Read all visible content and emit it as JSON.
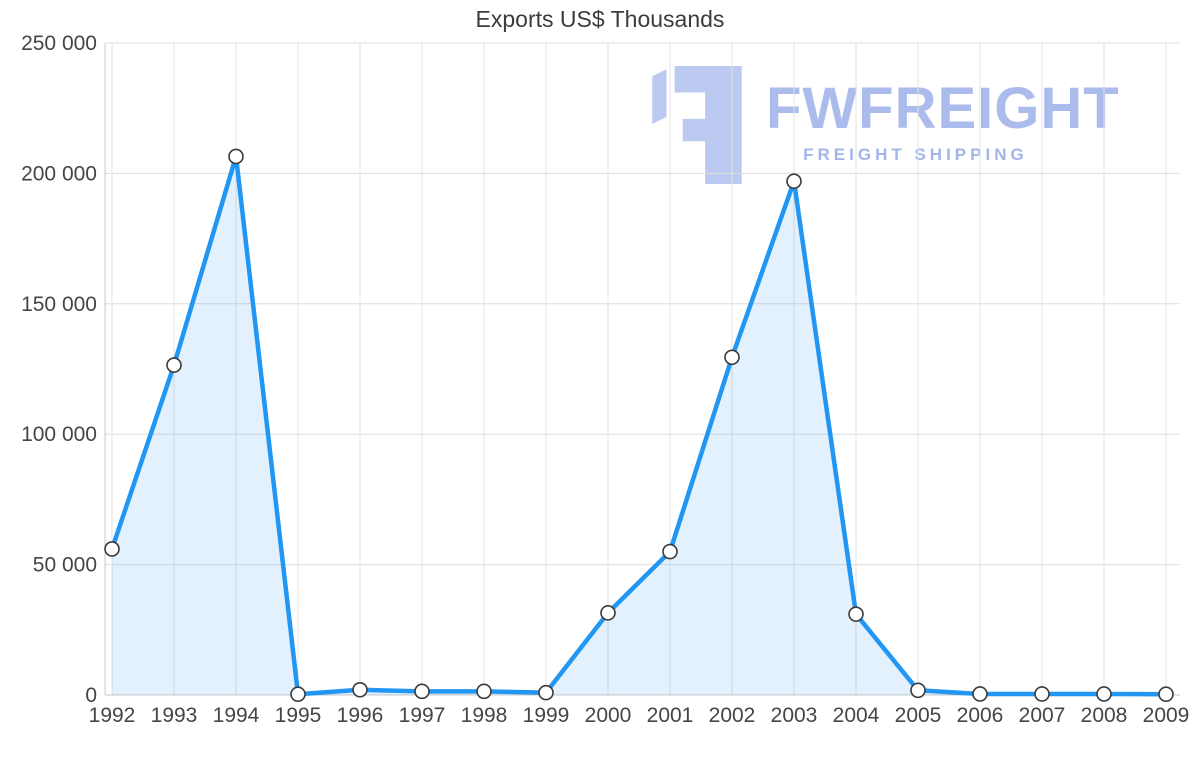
{
  "title": "Exports US$ Thousands",
  "watermark": {
    "brand": "FWFREIGHT",
    "tagline": "FREIGHT SHIPPING",
    "logo_color": "#b9c7f1",
    "brand_color": "#a6b8ec",
    "tagline_color": "#9db2e8"
  },
  "chart_data": {
    "type": "area",
    "title": "Exports US$ Thousands",
    "x": [
      1992,
      1993,
      1994,
      1995,
      1996,
      1997,
      1998,
      1999,
      2000,
      2001,
      2002,
      2003,
      2004,
      2005,
      2006,
      2007,
      2008,
      2009
    ],
    "values": [
      56000,
      126500,
      206500,
      300,
      2000,
      1400,
      1400,
      900,
      31500,
      55000,
      129500,
      197000,
      31000,
      1800,
      400,
      400,
      400,
      300
    ],
    "xlabel": "",
    "ylabel": "",
    "ylim": [
      0,
      250000
    ],
    "yticks": [
      0,
      50000,
      100000,
      150000,
      200000,
      250000
    ],
    "ytick_labels": [
      "0",
      "50 000",
      "100 000",
      "150 000",
      "200 000",
      "250 000"
    ],
    "grid": true,
    "legend": "none",
    "line_color": "#2196f3",
    "fill_color": "rgba(33,150,243,0.13)",
    "marker_fill": "#ffffff",
    "marker_stroke": "#3a3a3a",
    "grid_color_h": "#dedede",
    "grid_color_v": "#e3e3e3",
    "axis_color": "#c9c9c9",
    "label_color": "#454545"
  }
}
